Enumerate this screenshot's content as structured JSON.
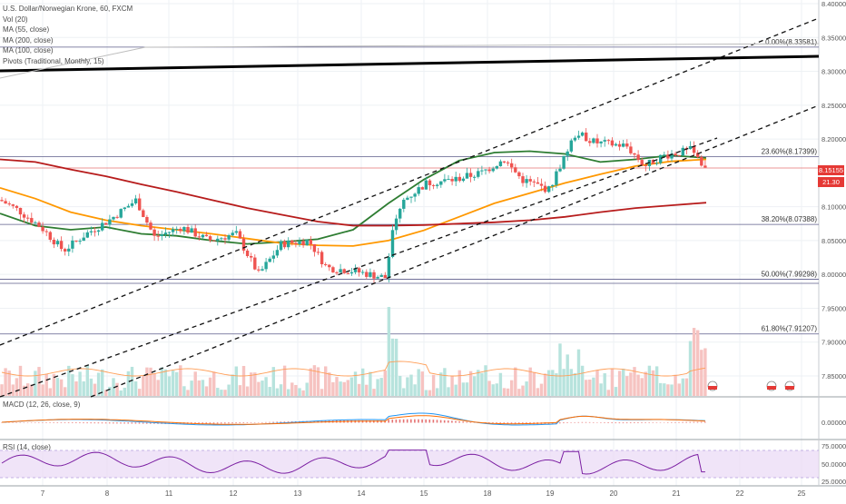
{
  "header": {
    "symbol": "U.S. Dollar/Norwegian Krone, 60, FXCM",
    "indicators": [
      "Vol (20)",
      "MA (55, close)",
      "MA (200, close)",
      "MA (100, close)",
      "Pivots (Traditional, Monthly, 15)"
    ]
  },
  "price_tag": {
    "value": "8.15155",
    "color": "#e53935"
  },
  "volume_tag": {
    "value": "21.30",
    "color": "#e53935"
  },
  "panes": {
    "macd_label": "MACD (12, 26, close, 9)",
    "rsi_label": "RSI (14, close)"
  },
  "colors": {
    "up": "#26a69a",
    "down": "#ef5350",
    "ma55": "#2e7d32",
    "ma100": "#ff9800",
    "ma200": "#b71c1c",
    "macd": "#2196f3",
    "signal": "#ff6d00",
    "rsi": "#7b1fa2",
    "rsi_band": "#ead9f5"
  },
  "chart_data": [
    {
      "type": "line",
      "title": "U.S. Dollar/Norwegian Krone, 60, FXCM",
      "ylim": [
        7.8,
        8.4
      ],
      "y_ticks": [
        "8.40000",
        "8.35000",
        "8.30000",
        "8.25000",
        "8.20000",
        "8.10000",
        "8.05000",
        "8.00000",
        "7.95000",
        "7.90000",
        "7.85000"
      ],
      "x_ticks": [
        "7",
        "8",
        "11",
        "12",
        "13",
        "14",
        "15",
        "18",
        "19",
        "20",
        "21",
        "22",
        "25"
      ],
      "series": [
        {
          "name": "MA (55, close)",
          "color": "#2e7d32",
          "x": [
            0,
            1,
            2,
            3,
            4,
            5,
            6,
            7,
            8,
            9,
            10,
            11,
            12,
            13,
            14,
            15,
            16,
            17,
            18,
            19,
            20
          ],
          "values": [
            8.09,
            8.072,
            8.066,
            8.07,
            8.06,
            8.057,
            8.05,
            8.045,
            8.048,
            8.052,
            8.066,
            8.105,
            8.14,
            8.168,
            8.18,
            8.182,
            8.178,
            8.166,
            8.17,
            8.176,
            8.172
          ]
        },
        {
          "name": "MA (100, close)",
          "color": "#ff9800",
          "x": [
            0,
            1,
            2,
            3,
            4,
            5,
            6,
            7,
            8,
            9,
            10,
            11,
            12,
            13,
            14,
            15,
            16,
            17,
            18,
            19,
            20
          ],
          "values": [
            8.128,
            8.112,
            8.092,
            8.08,
            8.072,
            8.066,
            8.06,
            8.053,
            8.046,
            8.043,
            8.042,
            8.05,
            8.065,
            8.085,
            8.105,
            8.12,
            8.135,
            8.148,
            8.16,
            8.167,
            8.17
          ]
        },
        {
          "name": "MA (200, close)",
          "color": "#b71c1c",
          "x": [
            0,
            1,
            2,
            3,
            4,
            5,
            6,
            7,
            8,
            9,
            10,
            11,
            12,
            13,
            14,
            15,
            16,
            17,
            18,
            19,
            20
          ],
          "values": [
            8.17,
            8.166,
            8.155,
            8.145,
            8.133,
            8.122,
            8.11,
            8.098,
            8.088,
            8.078,
            8.072,
            8.072,
            8.073,
            8.075,
            8.077,
            8.08,
            8.085,
            8.092,
            8.098,
            8.102,
            8.106
          ]
        }
      ],
      "fib_levels": [
        {
          "label": "0.00%(8.33581)",
          "value": 8.33581
        },
        {
          "label": "23.60%(8.17399)",
          "value": 8.17399
        },
        {
          "label": "38.20%(8.07388)",
          "value": 8.07388
        },
        {
          "label": "50.00%(7.99298)",
          "value": 7.99298
        },
        {
          "label": "61.80%(7.91207)",
          "value": 7.91207
        }
      ],
      "trendlines": [
        "upper-channel",
        "lower-channel",
        "mid-channel",
        "resistance"
      ]
    },
    {
      "type": "bar",
      "title": "MACD (12, 26, close, 9)",
      "y_ticks": [
        "0.00000"
      ],
      "series": [
        {
          "name": "MACD",
          "color": "#2196f3"
        },
        {
          "name": "Signal",
          "color": "#ff6d00"
        }
      ]
    },
    {
      "type": "line",
      "title": "RSI (14, close)",
      "ylim": [
        25,
        80
      ],
      "y_ticks": [
        "75.0000",
        "50.0000",
        "25.0000"
      ],
      "series": [
        {
          "name": "RSI",
          "color": "#7b1fa2"
        }
      ]
    }
  ]
}
